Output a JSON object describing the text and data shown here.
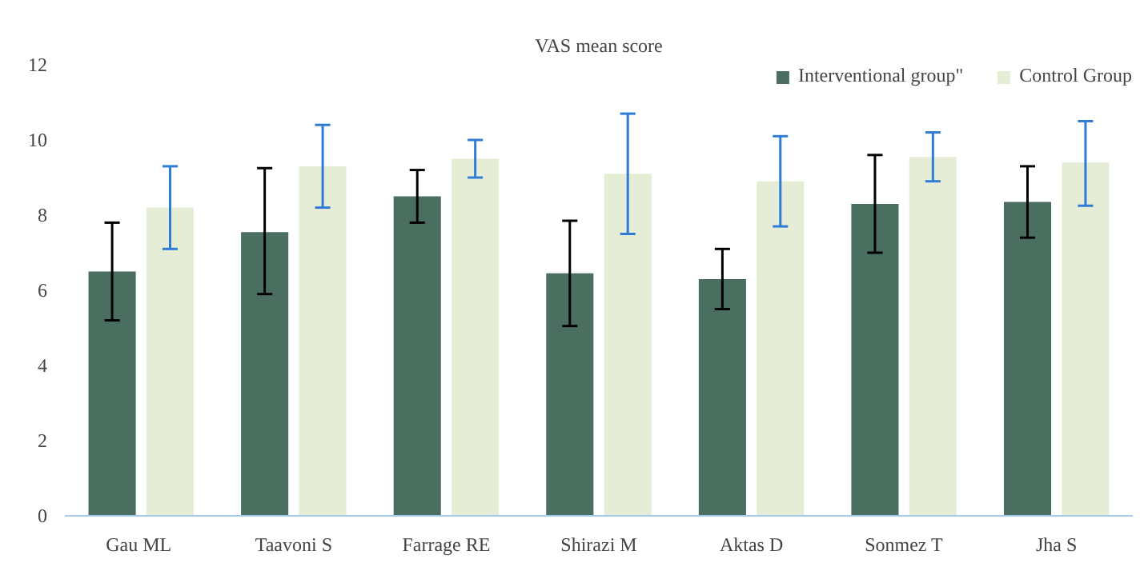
{
  "chart_data": {
    "type": "bar",
    "title": "VAS mean score",
    "categories": [
      "Gau  ML",
      "Taavoni S",
      "Farrage RE",
      "Shirazi M",
      "Aktas D",
      "Sonmez T",
      "Jha S"
    ],
    "series": [
      {
        "name": "Interventional group\"",
        "color": "#4a6e60",
        "values": [
          6.5,
          7.55,
          8.5,
          6.45,
          6.3,
          8.3,
          8.35
        ],
        "errors": [
          [
            5.2,
            7.8
          ],
          [
            5.9,
            9.25
          ],
          [
            7.8,
            9.2
          ],
          [
            5.05,
            7.85
          ],
          [
            5.5,
            7.1
          ],
          [
            7.0,
            9.6
          ],
          [
            7.4,
            9.3
          ]
        ]
      },
      {
        "name": "Control Group",
        "color": "#e6edd6",
        "values": [
          8.2,
          9.3,
          9.5,
          9.1,
          8.9,
          9.55,
          9.4
        ],
        "errors": [
          [
            7.1,
            9.3
          ],
          [
            8.2,
            10.4
          ],
          [
            9.0,
            10.0
          ],
          [
            7.5,
            10.7
          ],
          [
            7.7,
            10.1
          ],
          [
            8.9,
            10.2
          ],
          [
            8.25,
            10.5
          ]
        ]
      }
    ],
    "ylim": [
      0,
      12
    ],
    "yticks": [
      0,
      2,
      4,
      6,
      8,
      10,
      12
    ],
    "grid": false,
    "legend": "top right"
  }
}
